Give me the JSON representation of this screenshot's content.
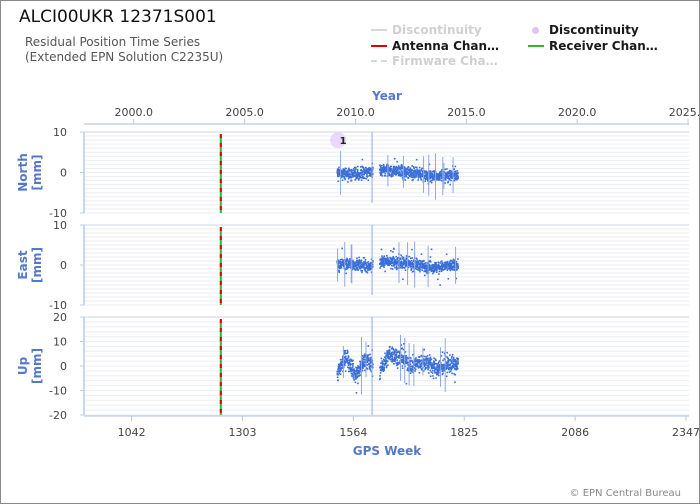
{
  "header": {
    "title": "ALCI00UKR 12371S001",
    "subtitle_line1": "Residual Position Time Series",
    "subtitle_line2": "(Extended EPN Solution C2235U)"
  },
  "legend": [
    {
      "label": "Discontinuity",
      "style": "line",
      "color": "#d8d8d8",
      "dimmed": true
    },
    {
      "label": "Discontinuity",
      "style": "marker",
      "color": "#d9b3f0",
      "dimmed": false
    },
    {
      "label": "Antenna Chan…",
      "style": "line",
      "color": "#e00000",
      "dimmed": false
    },
    {
      "label": "Receiver Chan…",
      "style": "line",
      "color": "#2db82d",
      "dimmed": false
    },
    {
      "label": "Firmware Cha…",
      "style": "dashed",
      "color": "#d8d8d8",
      "dimmed": true
    }
  ],
  "copyright": "© EPN Central Bureau",
  "chart_data": {
    "type": "scatter",
    "top_axis": {
      "label": "Year",
      "ticks": [
        "2000.0",
        "2005.0",
        "2010.0",
        "2015.0",
        "2020.0",
        "2025.0"
      ],
      "tick_values": [
        2000.0,
        2005.0,
        2010.0,
        2015.0,
        2020.0,
        2025.0
      ]
    },
    "bottom_axis": {
      "label": "GPS Week",
      "ticks": [
        "1042",
        "1303",
        "1564",
        "1825",
        "2086",
        "2347"
      ],
      "tick_values": [
        1042,
        1303,
        1564,
        1825,
        2086,
        2347
      ]
    },
    "x_range_gps_week": [
      930,
      2354
    ],
    "grid": true,
    "equipment_change_gps_week": 1252,
    "discontinuity_marker": {
      "label": "1",
      "gps_week": 1528,
      "panel": "North",
      "value": 8
    },
    "data_span_gps_week": [
      1526,
      1811
    ],
    "data_gap_gps_week": [
      1610,
      1626
    ],
    "panels": [
      {
        "name": "North",
        "ylabel_line1": "North",
        "ylabel_line2": "[mm]",
        "ylim": [
          -10,
          10
        ],
        "yticks": [
          "10",
          "0",
          "-10"
        ],
        "ytick_values": [
          10,
          0,
          -10
        ],
        "noise_mm": 1.3,
        "spike_mm": 3.5,
        "trend": [
          [
            1526,
            0.0
          ],
          [
            1560,
            -0.5
          ],
          [
            1600,
            0.2
          ],
          [
            1640,
            0.5
          ],
          [
            1700,
            0.0
          ],
          [
            1760,
            -1.0
          ],
          [
            1811,
            -0.5
          ]
        ]
      },
      {
        "name": "East",
        "ylabel_line1": "East",
        "ylabel_line2": "[mm]",
        "ylim": [
          -10,
          10
        ],
        "yticks": [
          "10",
          "0",
          "-10"
        ],
        "ytick_values": [
          10,
          0,
          -10
        ],
        "noise_mm": 1.3,
        "spike_mm": 3.5,
        "trend": [
          [
            1526,
            0.0
          ],
          [
            1560,
            0.3
          ],
          [
            1600,
            -0.4
          ],
          [
            1640,
            1.0
          ],
          [
            1700,
            0.2
          ],
          [
            1760,
            -0.6
          ],
          [
            1811,
            0.0
          ]
        ]
      },
      {
        "name": "Up",
        "ylabel_line1": "Up",
        "ylabel_line2": "[mm]",
        "ylim": [
          -20,
          20
        ],
        "yticks": [
          "20",
          "10",
          "0",
          "-10",
          "-20"
        ],
        "ytick_values": [
          20,
          10,
          0,
          -10,
          -20
        ],
        "noise_mm": 3.2,
        "spike_mm": 7.0,
        "trend": [
          [
            1526,
            -3.0
          ],
          [
            1548,
            4.0
          ],
          [
            1570,
            -4.0
          ],
          [
            1592,
            3.0
          ],
          [
            1610,
            0.0
          ],
          [
            1626,
            -2.0
          ],
          [
            1650,
            5.0
          ],
          [
            1680,
            3.0
          ],
          [
            1700,
            0.0
          ],
          [
            1730,
            2.0
          ],
          [
            1760,
            -1.0
          ],
          [
            1790,
            1.0
          ],
          [
            1811,
            0.0
          ]
        ]
      }
    ]
  }
}
